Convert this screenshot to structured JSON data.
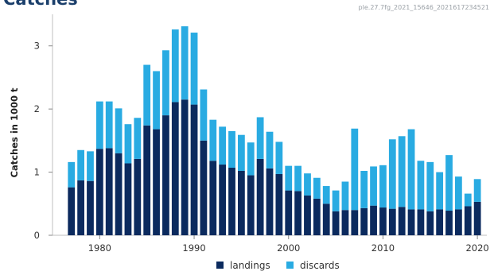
{
  "title": "Catches",
  "stamp": "ple.27.7fg_2021_15646_2021617234521",
  "chart_data": {
    "type": "bar",
    "stacked": true,
    "ylabel": "Catches in 1000 t",
    "xlabel": "",
    "ylim": [
      0,
      3.5
    ],
    "xlim": [
      1975,
      2021
    ],
    "yticks": [
      0,
      1,
      2,
      3
    ],
    "xticks": [
      1980,
      1990,
      2000,
      2010,
      2020
    ],
    "legend": "bottom",
    "grid": false,
    "x": [
      1977,
      1978,
      1979,
      1980,
      1981,
      1982,
      1983,
      1984,
      1985,
      1986,
      1987,
      1988,
      1989,
      1990,
      1991,
      1992,
      1993,
      1994,
      1995,
      1996,
      1997,
      1998,
      1999,
      2000,
      2001,
      2002,
      2003,
      2004,
      2005,
      2006,
      2007,
      2008,
      2009,
      2010,
      2011,
      2012,
      2013,
      2014,
      2015,
      2016,
      2017,
      2018,
      2019,
      2020
    ],
    "series": [
      {
        "name": "landings",
        "color": "#0b2a5e",
        "values": [
          0.76,
          0.87,
          0.86,
          1.37,
          1.38,
          1.3,
          1.14,
          1.21,
          1.74,
          1.68,
          1.9,
          2.11,
          2.15,
          2.07,
          1.5,
          1.18,
          1.12,
          1.07,
          1.02,
          0.95,
          1.21,
          1.06,
          0.97,
          0.71,
          0.7,
          0.63,
          0.58,
          0.5,
          0.38,
          0.4,
          0.4,
          0.43,
          0.47,
          0.44,
          0.42,
          0.45,
          0.41,
          0.41,
          0.38,
          0.41,
          0.39,
          0.41,
          0.46,
          0.53
        ]
      },
      {
        "name": "discards",
        "color": "#29abe2",
        "values": [
          0.4,
          0.48,
          0.47,
          0.75,
          0.74,
          0.71,
          0.62,
          0.65,
          0.96,
          0.92,
          1.03,
          1.15,
          1.16,
          1.14,
          0.81,
          0.65,
          0.6,
          0.58,
          0.57,
          0.52,
          0.66,
          0.58,
          0.51,
          0.39,
          0.4,
          0.35,
          0.33,
          0.28,
          0.33,
          0.45,
          1.29,
          0.59,
          0.62,
          0.67,
          1.1,
          1.12,
          1.27,
          0.77,
          0.78,
          0.59,
          0.88,
          0.52,
          0.2,
          0.36
        ]
      }
    ]
  }
}
